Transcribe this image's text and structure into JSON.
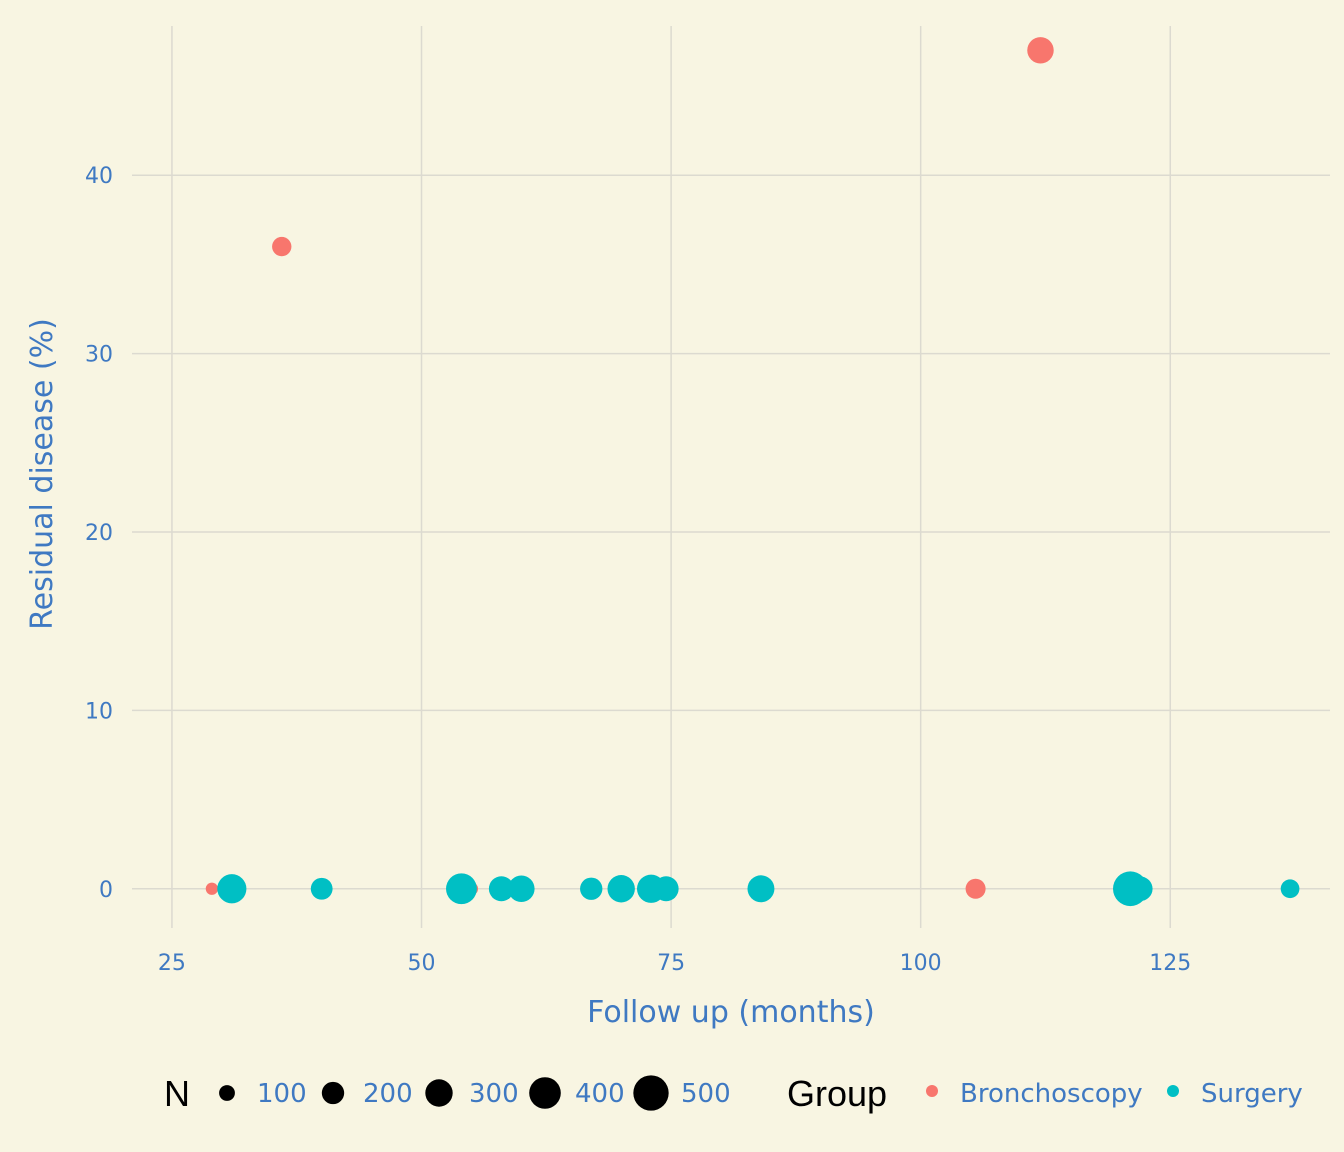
{
  "chart_data": {
    "type": "scatter",
    "title": "",
    "xlabel": "Follow up (months)",
    "ylabel": "Residual disease (%)",
    "xlim": [
      21,
      141
    ],
    "ylim": [
      -2.2,
      48.7
    ],
    "x_ticks": [
      25,
      50,
      75,
      100,
      125
    ],
    "y_ticks": [
      0,
      10,
      20,
      30,
      40
    ],
    "grid": true,
    "legend_position": "bottom",
    "size_legend": {
      "title": "N",
      "values": [
        100,
        200,
        300,
        400,
        500
      ]
    },
    "color_legend": {
      "title": "Group",
      "entries": [
        {
          "label": "Bronchoscopy",
          "color": "#f8766d"
        },
        {
          "label": "Surgery",
          "color": "#00bfc4"
        }
      ]
    },
    "series": [
      {
        "name": "Bronchoscopy",
        "color": "#f8766d",
        "points": [
          {
            "x": 29,
            "y": 0,
            "n": 60
          },
          {
            "x": 36,
            "y": 36,
            "n": 150
          },
          {
            "x": 55,
            "y": 0,
            "n": 70
          },
          {
            "x": 105.5,
            "y": 0,
            "n": 160
          },
          {
            "x": 112,
            "y": 47,
            "n": 280
          }
        ]
      },
      {
        "name": "Surgery",
        "color": "#00bfc4",
        "points": [
          {
            "x": 31,
            "y": 0,
            "n": 340
          },
          {
            "x": 40,
            "y": 0,
            "n": 190
          },
          {
            "x": 54,
            "y": 0,
            "n": 380
          },
          {
            "x": 58,
            "y": 0,
            "n": 250
          },
          {
            "x": 60,
            "y": 0,
            "n": 280
          },
          {
            "x": 67,
            "y": 0,
            "n": 200
          },
          {
            "x": 70,
            "y": 0,
            "n": 300
          },
          {
            "x": 73,
            "y": 0,
            "n": 320
          },
          {
            "x": 74.5,
            "y": 0,
            "n": 250
          },
          {
            "x": 84,
            "y": 0,
            "n": 290
          },
          {
            "x": 121,
            "y": 0,
            "n": 480
          },
          {
            "x": 122,
            "y": 0,
            "n": 240
          },
          {
            "x": 137,
            "y": 0,
            "n": 140
          }
        ]
      }
    ]
  }
}
